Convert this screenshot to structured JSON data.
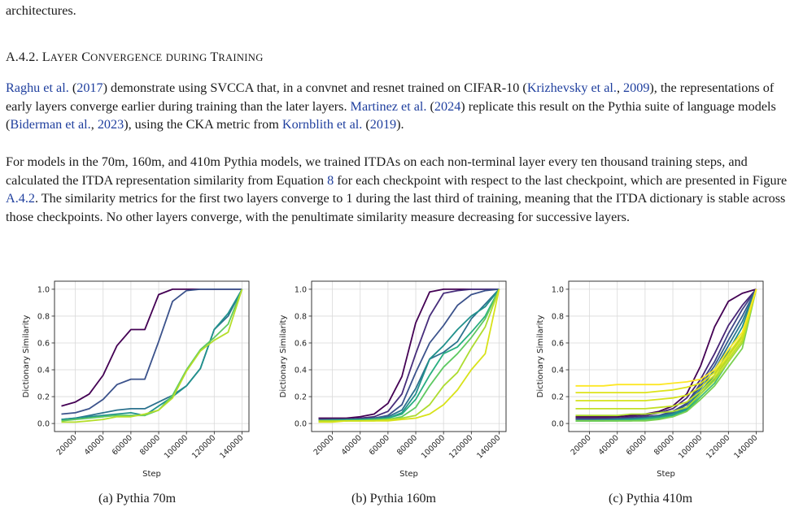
{
  "top_fragment": "architectures.",
  "section": {
    "number": "A.4.2.",
    "title_words": [
      {
        "cap": "L",
        "rest": "AYER"
      },
      {
        "cap": "C",
        "rest": "ONVERGENCE"
      },
      {
        "cap": "",
        "rest": "DURING"
      },
      {
        "cap": "T",
        "rest": "RAINING"
      }
    ]
  },
  "paragraph1": {
    "cite_raghu": "Raghu et al.",
    "year_2017": "2017",
    "t1": " demonstrate using SVCCA that, in a convnet and resnet trained on CIFAR-10 (",
    "cite_krizhevsky": "Krizhevsky et al.",
    "year_2009": "2009",
    "t2": "), the representations of early layers converge earlier during training than the later layers. ",
    "cite_martinez": "Martinez et al.",
    "year_2024": "2024",
    "t3": " replicate this result on the Pythia suite of language models (",
    "cite_biderman": "Biderman et al.",
    "year_2023": "2023",
    "t4": "), using the CKA metric from ",
    "cite_kornblith": "Kornblith et al.",
    "year_2019": "2019"
  },
  "paragraph2": {
    "t1": "For models in the 70m, 160m, and 410m Pythia models, we trained ITDAs on each non-terminal layer every ten thousand training steps, and calculated the ITDA representation similarity from Equation ",
    "eq_ref": "8",
    "t2": " for each checkpoint with respect to the last checkpoint, which are presented in Figure ",
    "fig_ref": "A.4.2",
    "t3": ". The similarity metrics for the first two layers converge to 1 during the last third of training, meaning that the ITDA dictionary is stable across those checkpoints. No other layers converge, with the penultimate similarity measure decreasing for successive layers."
  },
  "captions": [
    "(a) Pythia 70m",
    "(b) Pythia 160m",
    "(c) Pythia 410m"
  ],
  "chart_data": [
    {
      "type": "line",
      "title": "",
      "xlabel": "Step",
      "ylabel": "Dictionary Similarity",
      "xlim": [
        20000,
        140000
      ],
      "ylim": [
        0,
        1
      ],
      "xticks": [
        "20000",
        "40000",
        "60000",
        "80000",
        "100000",
        "120000",
        "140000"
      ],
      "yticks": [
        "0.0",
        "0.2",
        "0.4",
        "0.6",
        "0.8",
        "1.0"
      ],
      "grid": true,
      "colormap": "viridis",
      "x": [
        10000,
        20000,
        30000,
        40000,
        50000,
        60000,
        70000,
        80000,
        90000,
        100000,
        110000,
        120000,
        130000,
        140000
      ],
      "series": [
        {
          "color": "#440154",
          "values": [
            0.13,
            0.16,
            0.22,
            0.36,
            0.58,
            0.7,
            0.7,
            0.96,
            1.0,
            1.0,
            1.0,
            1.0,
            1.0,
            1.0
          ]
        },
        {
          "color": "#3b528b",
          "values": [
            0.07,
            0.08,
            0.11,
            0.18,
            0.29,
            0.33,
            0.33,
            0.61,
            0.91,
            0.99,
            1.0,
            1.0,
            1.0,
            1.0
          ]
        },
        {
          "color": "#2c728e",
          "values": [
            0.03,
            0.04,
            0.06,
            0.08,
            0.1,
            0.11,
            0.11,
            0.16,
            0.21,
            0.28,
            0.41,
            0.7,
            0.8,
            1.0
          ]
        },
        {
          "color": "#21918c",
          "values": [
            0.03,
            0.04,
            0.05,
            0.06,
            0.07,
            0.08,
            0.06,
            0.13,
            0.2,
            0.28,
            0.41,
            0.7,
            0.82,
            1.0
          ]
        },
        {
          "color": "#5ec962",
          "values": [
            0.02,
            0.03,
            0.04,
            0.05,
            0.06,
            0.06,
            0.06,
            0.1,
            0.21,
            0.4,
            0.55,
            0.64,
            0.74,
            1.0
          ]
        },
        {
          "color": "#b5de2b",
          "values": [
            0.01,
            0.01,
            0.02,
            0.03,
            0.05,
            0.05,
            0.07,
            0.1,
            0.19,
            0.39,
            0.54,
            0.62,
            0.68,
            1.0
          ]
        }
      ]
    },
    {
      "type": "line",
      "title": "",
      "xlabel": "Step",
      "ylabel": "Dictionary Similarity",
      "xlim": [
        20000,
        140000
      ],
      "ylim": [
        0,
        1
      ],
      "xticks": [
        "20000",
        "40000",
        "60000",
        "80000",
        "100000",
        "120000",
        "140000"
      ],
      "yticks": [
        "0.0",
        "0.2",
        "0.4",
        "0.6",
        "0.8",
        "1.0"
      ],
      "grid": true,
      "colormap": "viridis",
      "x": [
        10000,
        20000,
        30000,
        40000,
        50000,
        60000,
        70000,
        80000,
        90000,
        100000,
        110000,
        120000,
        130000,
        140000
      ],
      "series": [
        {
          "color": "#440154",
          "values": [
            0.04,
            0.04,
            0.04,
            0.05,
            0.07,
            0.15,
            0.35,
            0.75,
            0.98,
            1.0,
            1.0,
            1.0,
            1.0,
            1.0
          ]
        },
        {
          "color": "#472d7b",
          "values": [
            0.03,
            0.03,
            0.03,
            0.04,
            0.05,
            0.09,
            0.22,
            0.52,
            0.8,
            0.97,
            0.99,
            1.0,
            1.0,
            1.0
          ]
        },
        {
          "color": "#3b528b",
          "values": [
            0.03,
            0.03,
            0.03,
            0.03,
            0.04,
            0.06,
            0.14,
            0.38,
            0.6,
            0.73,
            0.88,
            0.96,
            0.99,
            1.0
          ]
        },
        {
          "color": "#2c728e",
          "values": [
            0.02,
            0.03,
            0.03,
            0.03,
            0.04,
            0.05,
            0.1,
            0.26,
            0.48,
            0.53,
            0.61,
            0.78,
            0.89,
            1.0
          ]
        },
        {
          "color": "#21918c",
          "values": [
            0.02,
            0.02,
            0.03,
            0.03,
            0.03,
            0.04,
            0.08,
            0.22,
            0.48,
            0.58,
            0.7,
            0.8,
            0.87,
            1.0
          ]
        },
        {
          "color": "#28ae80",
          "values": [
            0.02,
            0.02,
            0.02,
            0.03,
            0.03,
            0.04,
            0.07,
            0.18,
            0.36,
            0.52,
            0.57,
            0.68,
            0.8,
            1.0
          ]
        },
        {
          "color": "#5ec962",
          "values": [
            0.02,
            0.02,
            0.02,
            0.02,
            0.03,
            0.03,
            0.05,
            0.12,
            0.28,
            0.42,
            0.52,
            0.64,
            0.78,
            1.0
          ]
        },
        {
          "color": "#addc30",
          "values": [
            0.02,
            0.02,
            0.02,
            0.02,
            0.02,
            0.03,
            0.04,
            0.06,
            0.14,
            0.28,
            0.38,
            0.56,
            0.72,
            1.0
          ]
        },
        {
          "color": "#d8e219",
          "values": [
            0.01,
            0.01,
            0.02,
            0.02,
            0.02,
            0.02,
            0.03,
            0.04,
            0.07,
            0.14,
            0.25,
            0.4,
            0.52,
            1.0
          ]
        }
      ]
    },
    {
      "type": "line",
      "title": "",
      "xlabel": "Step",
      "ylabel": "Dictionary Similarity",
      "xlim": [
        20000,
        140000
      ],
      "ylim": [
        0,
        1
      ],
      "xticks": [
        "20000",
        "40000",
        "60000",
        "80000",
        "100000",
        "120000",
        "140000"
      ],
      "yticks": [
        "0.0",
        "0.2",
        "0.4",
        "0.6",
        "0.8",
        "1.0"
      ],
      "grid": true,
      "colormap": "viridis",
      "x": [
        10000,
        20000,
        30000,
        40000,
        50000,
        60000,
        70000,
        80000,
        90000,
        100000,
        110000,
        120000,
        130000,
        140000
      ],
      "series": [
        {
          "color": "#440154",
          "values": [
            0.05,
            0.05,
            0.05,
            0.05,
            0.06,
            0.07,
            0.09,
            0.13,
            0.22,
            0.43,
            0.72,
            0.91,
            0.97,
            1.0
          ]
        },
        {
          "color": "#482576",
          "values": [
            0.04,
            0.04,
            0.04,
            0.04,
            0.05,
            0.06,
            0.08,
            0.11,
            0.19,
            0.33,
            0.52,
            0.73,
            0.88,
            1.0
          ]
        },
        {
          "color": "#414487",
          "values": [
            0.03,
            0.03,
            0.03,
            0.04,
            0.04,
            0.05,
            0.06,
            0.09,
            0.15,
            0.3,
            0.46,
            0.67,
            0.85,
            1.0
          ]
        },
        {
          "color": "#355f8d",
          "values": [
            0.03,
            0.03,
            0.03,
            0.03,
            0.04,
            0.04,
            0.06,
            0.08,
            0.14,
            0.28,
            0.43,
            0.62,
            0.8,
            1.0
          ]
        },
        {
          "color": "#2a788e",
          "values": [
            0.02,
            0.02,
            0.03,
            0.03,
            0.03,
            0.04,
            0.05,
            0.07,
            0.12,
            0.26,
            0.4,
            0.58,
            0.76,
            1.0
          ]
        },
        {
          "color": "#21918c",
          "values": [
            0.02,
            0.02,
            0.02,
            0.03,
            0.03,
            0.04,
            0.05,
            0.07,
            0.11,
            0.24,
            0.36,
            0.54,
            0.72,
            1.0
          ]
        },
        {
          "color": "#22a884",
          "values": [
            0.02,
            0.02,
            0.02,
            0.02,
            0.03,
            0.03,
            0.04,
            0.06,
            0.1,
            0.22,
            0.33,
            0.5,
            0.66,
            1.0
          ]
        },
        {
          "color": "#44bf70",
          "values": [
            0.02,
            0.02,
            0.02,
            0.02,
            0.02,
            0.03,
            0.04,
            0.05,
            0.09,
            0.2,
            0.3,
            0.46,
            0.6,
            1.0
          ]
        },
        {
          "color": "#7ad151",
          "values": [
            0.02,
            0.02,
            0.02,
            0.02,
            0.02,
            0.02,
            0.03,
            0.05,
            0.09,
            0.18,
            0.28,
            0.42,
            0.56,
            1.0
          ]
        },
        {
          "color": "#addc30",
          "values": [
            0.06,
            0.06,
            0.06,
            0.06,
            0.07,
            0.07,
            0.08,
            0.09,
            0.12,
            0.22,
            0.32,
            0.46,
            0.6,
            1.0
          ]
        },
        {
          "color": "#c2df23",
          "values": [
            0.11,
            0.11,
            0.11,
            0.11,
            0.11,
            0.11,
            0.12,
            0.13,
            0.16,
            0.24,
            0.34,
            0.48,
            0.62,
            1.0
          ]
        },
        {
          "color": "#d5e21a",
          "values": [
            0.17,
            0.17,
            0.17,
            0.17,
            0.17,
            0.17,
            0.18,
            0.19,
            0.21,
            0.27,
            0.36,
            0.5,
            0.64,
            1.0
          ]
        },
        {
          "color": "#dde318",
          "values": [
            0.23,
            0.23,
            0.23,
            0.23,
            0.23,
            0.23,
            0.24,
            0.25,
            0.27,
            0.3,
            0.38,
            0.52,
            0.66,
            1.0
          ]
        },
        {
          "color": "#fde725",
          "values": [
            0.28,
            0.28,
            0.28,
            0.29,
            0.29,
            0.29,
            0.29,
            0.3,
            0.31,
            0.33,
            0.4,
            0.55,
            0.68,
            1.0
          ]
        }
      ]
    }
  ]
}
